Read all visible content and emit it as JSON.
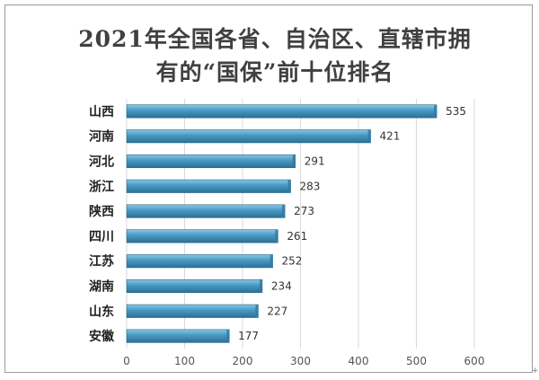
{
  "title": {
    "line1": "2021年全国各省、自治区、直辖市拥",
    "line2": "有的“国保”前十位排名"
  },
  "chart_data": {
    "type": "bar",
    "orientation": "horizontal",
    "title": "2021年全国各省、自治区、直辖市拥有的“国保”前十位排名",
    "categories": [
      "山西",
      "河南",
      "河北",
      "浙江",
      "陕西",
      "四川",
      "江苏",
      "湖南",
      "山东",
      "安徽"
    ],
    "values": [
      535,
      421,
      291,
      283,
      273,
      261,
      252,
      234,
      227,
      177
    ],
    "xlim": [
      0,
      600
    ],
    "xticks": [
      0,
      100,
      200,
      300,
      400,
      500,
      600
    ],
    "grid": true,
    "legend": "none",
    "bar_color": "#4a9cc6"
  }
}
